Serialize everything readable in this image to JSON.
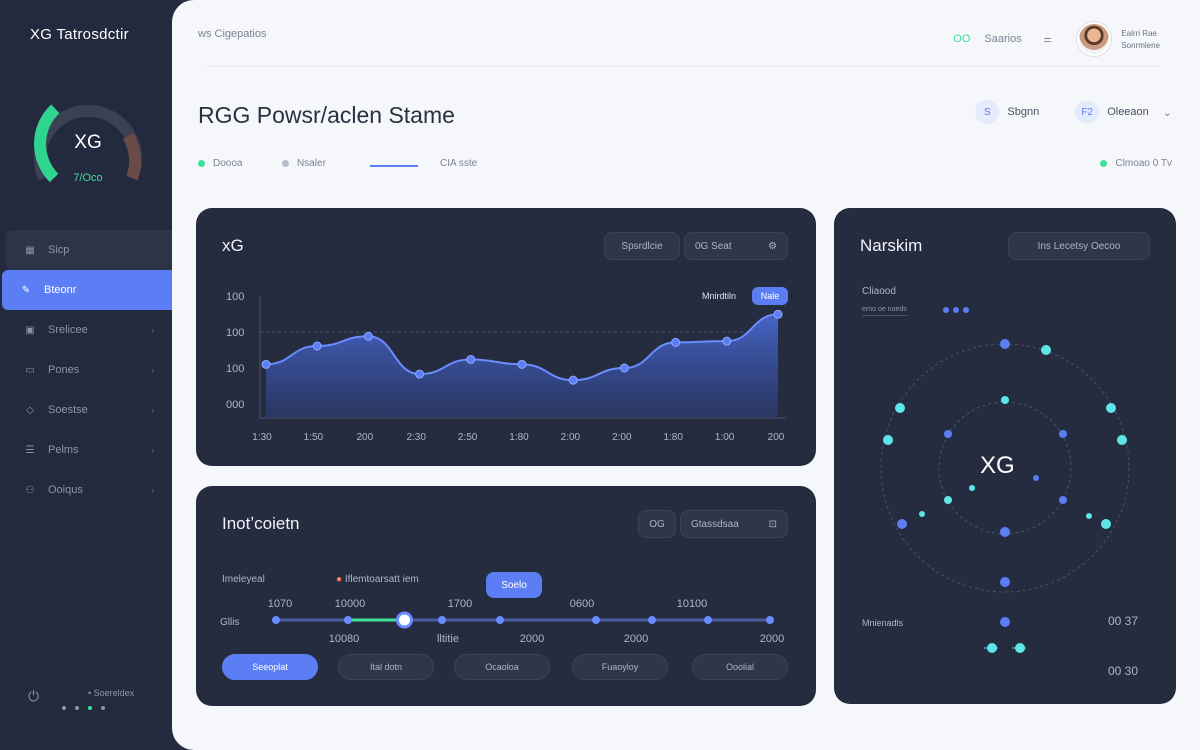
{
  "sidebar": {
    "brand": "XG  Tatrosdctir",
    "gauge": {
      "label": "XG",
      "sub": "7/Oco",
      "value_fraction": 0.62
    },
    "items": [
      {
        "label": "Sicp",
        "icon": "grid-icon",
        "glyph": "▦"
      },
      {
        "label": "Bteonr",
        "icon": "pen-icon",
        "glyph": "✎"
      },
      {
        "label": "Srelicee",
        "icon": "box-icon",
        "glyph": "▣"
      },
      {
        "label": "Pones",
        "icon": "card-icon",
        "glyph": "▭"
      },
      {
        "label": "Soestse",
        "icon": "shield-icon",
        "glyph": "◇"
      },
      {
        "label": "Pelms",
        "icon": "list-icon",
        "glyph": "☰"
      },
      {
        "label": "Ooiqus",
        "icon": "users-icon",
        "glyph": "⚇"
      }
    ],
    "footer": {
      "label": "• Soereldex"
    }
  },
  "topbar": {
    "breadcrumb": "ws Cigepatios",
    "badge": "OO",
    "search": "Saarios",
    "menu": "=",
    "user": {
      "name": "Ealrri Rae",
      "role": "Sonrmlene"
    }
  },
  "page": {
    "title": "RGG Powsr/aclen Stame",
    "actions": [
      {
        "icon": "S",
        "label": "Sbgnn"
      },
      {
        "icon": "F2",
        "label": "Oleeaon"
      }
    ],
    "legend": [
      {
        "label": "Doooa",
        "color": "#3ee09a"
      },
      {
        "label": "Nsaler",
        "color": "#b8bcc8"
      },
      {
        "label": "CIA sste"
      }
    ],
    "status": {
      "label": "Clmoao 0 Tv",
      "color": "#3ee09a"
    }
  },
  "chart_card": {
    "title": "xG",
    "btn1": "Spsrdlcie",
    "btn2": "0G Seat",
    "btn3": "⚙",
    "tag_label": "Mnirdtiln",
    "tag_pill": "Nale",
    "chart_data": {
      "type": "area",
      "yticks": [
        "100",
        "100",
        "100",
        "000"
      ],
      "xticks": [
        "1:30",
        "1:50",
        "200",
        "2:30",
        "2:50",
        "1:80",
        "2:00",
        "2:00",
        "1:80",
        "1:00",
        "200"
      ],
      "values": [
        268,
        298,
        314,
        252,
        276,
        268,
        242,
        262,
        304,
        306,
        350
      ],
      "ylim": [
        180,
        380
      ]
    }
  },
  "timeline_card": {
    "title": "Inotʼcoietn",
    "btn1": "OG",
    "btn2": "Gtassdsaa",
    "btn3": "⊡",
    "label_left": "Imeleyeal",
    "label_mid": "Iflemtoarsatt iem",
    "pill": "Soelo",
    "top_ticks": [
      "1070",
      "10000",
      "1700",
      "0600",
      "10100"
    ],
    "row_label": "Gllis",
    "bottom_ticks": [
      "10080",
      "lltitie",
      "2000",
      "2000",
      "2000"
    ],
    "progress_fraction": 0.26,
    "buttons": [
      "Seeoplat",
      "Ital dotn",
      "Ocaoloa",
      "Fuaoyloy",
      "Ooolial"
    ]
  },
  "network_card": {
    "title": "Narskim",
    "btn": "Ins  Lecetsy Oecoo",
    "legend": "Cliaood",
    "legend_sub": "erno oe noeds",
    "center": "XG",
    "bottom_label": "Mnienadls",
    "val1": "00 37",
    "val2": "00 30"
  }
}
